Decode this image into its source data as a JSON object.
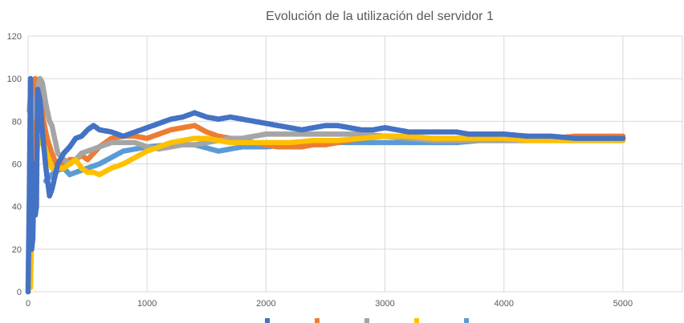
{
  "chart_data": {
    "type": "scatter",
    "title": "Evolución de la utilización del servidor 1",
    "xlabel": "",
    "ylabel": "",
    "xlim": [
      0,
      5500
    ],
    "ylim": [
      0,
      120
    ],
    "xticks": [
      0,
      1000,
      2000,
      3000,
      4000,
      5000
    ],
    "yticks": [
      0,
      20,
      40,
      60,
      80,
      100,
      120
    ],
    "grid": true,
    "legend_position": "bottom",
    "series": [
      {
        "color": "#4472c4",
        "points": [
          [
            0,
            0
          ],
          [
            10,
            45
          ],
          [
            20,
            100
          ],
          [
            30,
            20
          ],
          [
            40,
            25
          ],
          [
            50,
            60
          ],
          [
            60,
            36
          ],
          [
            70,
            40
          ],
          [
            80,
            95
          ],
          [
            100,
            90
          ],
          [
            120,
            75
          ],
          [
            150,
            58
          ],
          [
            180,
            45
          ],
          [
            200,
            48
          ],
          [
            250,
            60
          ],
          [
            300,
            65
          ],
          [
            350,
            68
          ],
          [
            400,
            72
          ],
          [
            450,
            73
          ],
          [
            500,
            76
          ],
          [
            550,
            78
          ],
          [
            600,
            76
          ],
          [
            700,
            75
          ],
          [
            800,
            73
          ],
          [
            900,
            75
          ],
          [
            1000,
            77
          ],
          [
            1100,
            79
          ],
          [
            1200,
            81
          ],
          [
            1300,
            82
          ],
          [
            1400,
            84
          ],
          [
            1500,
            82
          ],
          [
            1600,
            81
          ],
          [
            1700,
            82
          ],
          [
            1800,
            81
          ],
          [
            1900,
            80
          ],
          [
            2000,
            79
          ],
          [
            2100,
            78
          ],
          [
            2200,
            77
          ],
          [
            2300,
            76
          ],
          [
            2400,
            77
          ],
          [
            2500,
            78
          ],
          [
            2600,
            78
          ],
          [
            2700,
            77
          ],
          [
            2800,
            76
          ],
          [
            2900,
            76
          ],
          [
            3000,
            77
          ],
          [
            3100,
            76
          ],
          [
            3200,
            75
          ],
          [
            3300,
            75
          ],
          [
            3400,
            75
          ],
          [
            3500,
            75
          ],
          [
            3600,
            75
          ],
          [
            3700,
            74
          ],
          [
            3800,
            74
          ],
          [
            3900,
            74
          ],
          [
            4000,
            74
          ],
          [
            4200,
            73
          ],
          [
            4400,
            73
          ],
          [
            4600,
            72
          ],
          [
            4800,
            72
          ],
          [
            5000,
            72
          ]
        ]
      },
      {
        "color": "#ed7d31",
        "points": [
          [
            20,
            35
          ],
          [
            40,
            62
          ],
          [
            60,
            100
          ],
          [
            80,
            98
          ],
          [
            100,
            95
          ],
          [
            130,
            80
          ],
          [
            160,
            72
          ],
          [
            200,
            65
          ],
          [
            250,
            58
          ],
          [
            300,
            60
          ],
          [
            350,
            62
          ],
          [
            400,
            62
          ],
          [
            450,
            64
          ],
          [
            500,
            62
          ],
          [
            550,
            65
          ],
          [
            600,
            68
          ],
          [
            700,
            72
          ],
          [
            800,
            73
          ],
          [
            900,
            73
          ],
          [
            1000,
            72
          ],
          [
            1100,
            74
          ],
          [
            1200,
            76
          ],
          [
            1300,
            77
          ],
          [
            1400,
            78
          ],
          [
            1500,
            75
          ],
          [
            1600,
            73
          ],
          [
            1700,
            72
          ],
          [
            1800,
            71
          ],
          [
            1900,
            70
          ],
          [
            2000,
            69
          ],
          [
            2100,
            68
          ],
          [
            2200,
            68
          ],
          [
            2300,
            68
          ],
          [
            2400,
            69
          ],
          [
            2500,
            69
          ],
          [
            2600,
            70
          ],
          [
            2700,
            71
          ],
          [
            2800,
            72
          ],
          [
            2900,
            73
          ],
          [
            3000,
            73
          ],
          [
            3100,
            73
          ],
          [
            3200,
            72
          ],
          [
            3300,
            72
          ],
          [
            3400,
            72
          ],
          [
            3500,
            72
          ],
          [
            3600,
            72
          ],
          [
            3800,
            72
          ],
          [
            4000,
            72
          ],
          [
            4200,
            72
          ],
          [
            4400,
            72
          ],
          [
            4600,
            73
          ],
          [
            4800,
            73
          ],
          [
            5000,
            73
          ]
        ]
      },
      {
        "color": "#a5a5a5",
        "points": [
          [
            10,
            85
          ],
          [
            20,
            92
          ],
          [
            30,
            88
          ],
          [
            50,
            82
          ],
          [
            80,
            95
          ],
          [
            100,
            100
          ],
          [
            120,
            98
          ],
          [
            150,
            88
          ],
          [
            180,
            80
          ],
          [
            200,
            78
          ],
          [
            250,
            65
          ],
          [
            300,
            62
          ],
          [
            350,
            60
          ],
          [
            400,
            62
          ],
          [
            450,
            65
          ],
          [
            500,
            66
          ],
          [
            600,
            68
          ],
          [
            700,
            70
          ],
          [
            800,
            70
          ],
          [
            900,
            70
          ],
          [
            1000,
            68
          ],
          [
            1100,
            67
          ],
          [
            1200,
            68
          ],
          [
            1300,
            69
          ],
          [
            1400,
            69
          ],
          [
            1500,
            70
          ],
          [
            1600,
            71
          ],
          [
            1700,
            72
          ],
          [
            1800,
            72
          ],
          [
            1900,
            73
          ],
          [
            2000,
            74
          ],
          [
            2200,
            74
          ],
          [
            2400,
            74
          ],
          [
            2600,
            74
          ],
          [
            2800,
            74
          ],
          [
            3000,
            73
          ],
          [
            3200,
            72
          ],
          [
            3400,
            71
          ],
          [
            3600,
            71
          ],
          [
            3800,
            71
          ],
          [
            4000,
            71
          ],
          [
            4200,
            71
          ],
          [
            4400,
            72
          ],
          [
            4600,
            72
          ],
          [
            4800,
            72
          ],
          [
            5000,
            72
          ]
        ]
      },
      {
        "color": "#ffc000",
        "points": [
          [
            0,
            3
          ],
          [
            20,
            2
          ],
          [
            40,
            55
          ],
          [
            60,
            45
          ],
          [
            80,
            70
          ],
          [
            100,
            72
          ],
          [
            150,
            66
          ],
          [
            200,
            58
          ],
          [
            250,
            58
          ],
          [
            300,
            58
          ],
          [
            350,
            60
          ],
          [
            400,
            62
          ],
          [
            450,
            58
          ],
          [
            500,
            56
          ],
          [
            550,
            56
          ],
          [
            600,
            55
          ],
          [
            700,
            58
          ],
          [
            800,
            60
          ],
          [
            900,
            63
          ],
          [
            1000,
            66
          ],
          [
            1100,
            68
          ],
          [
            1200,
            70
          ],
          [
            1300,
            71
          ],
          [
            1400,
            72
          ],
          [
            1500,
            72
          ],
          [
            1600,
            71
          ],
          [
            1700,
            70
          ],
          [
            1800,
            70
          ],
          [
            1900,
            70
          ],
          [
            2000,
            70
          ],
          [
            2200,
            70
          ],
          [
            2400,
            71
          ],
          [
            2600,
            71
          ],
          [
            2800,
            72
          ],
          [
            3000,
            73
          ],
          [
            3200,
            73
          ],
          [
            3400,
            72
          ],
          [
            3600,
            72
          ],
          [
            3800,
            72
          ],
          [
            4000,
            72
          ],
          [
            4200,
            71
          ],
          [
            4400,
            71
          ],
          [
            4600,
            71
          ],
          [
            4800,
            71
          ],
          [
            5000,
            71
          ]
        ]
      },
      {
        "color": "#5b9bd5",
        "points": [
          [
            150,
            52
          ],
          [
            200,
            55
          ],
          [
            250,
            57
          ],
          [
            300,
            58
          ],
          [
            350,
            55
          ],
          [
            400,
            56
          ],
          [
            500,
            58
          ],
          [
            600,
            60
          ],
          [
            800,
            66
          ],
          [
            1000,
            68
          ],
          [
            1200,
            69
          ],
          [
            1400,
            69
          ],
          [
            1600,
            66
          ],
          [
            1700,
            67
          ],
          [
            1800,
            68
          ],
          [
            2000,
            68
          ],
          [
            2200,
            69
          ],
          [
            2400,
            70
          ],
          [
            2600,
            70
          ],
          [
            2800,
            70
          ],
          [
            3000,
            70
          ],
          [
            3200,
            70
          ],
          [
            3400,
            70
          ],
          [
            3600,
            70
          ],
          [
            3800,
            71
          ],
          [
            4000,
            71
          ],
          [
            4200,
            71
          ],
          [
            4400,
            71
          ],
          [
            4600,
            71
          ],
          [
            4800,
            71
          ],
          [
            5000,
            71
          ]
        ]
      }
    ]
  }
}
